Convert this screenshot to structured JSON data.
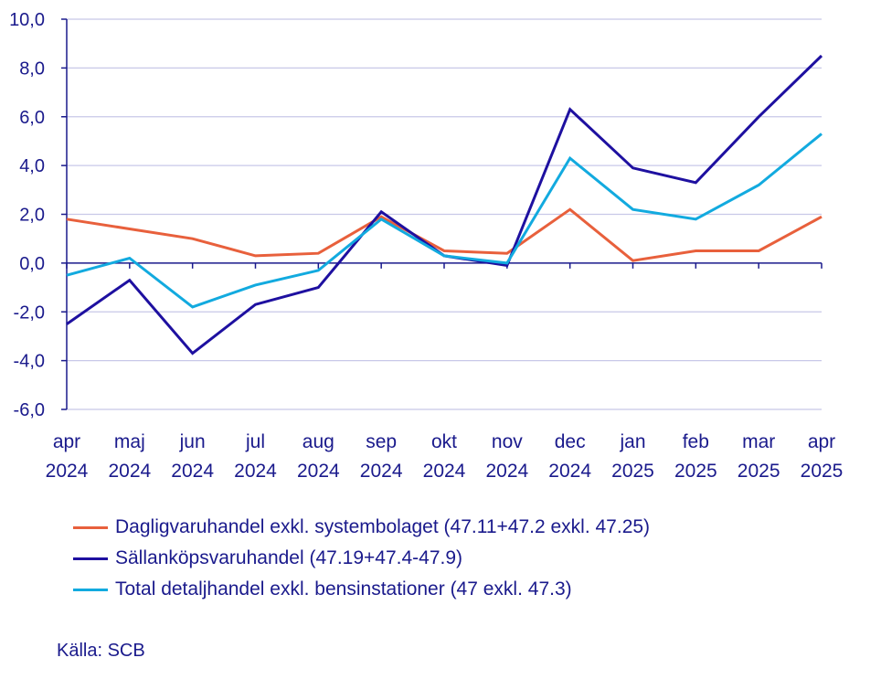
{
  "chart_data": {
    "type": "line",
    "x_top": [
      "apr",
      "maj",
      "jun",
      "jul",
      "aug",
      "sep",
      "okt",
      "nov",
      "dec",
      "jan",
      "feb",
      "mar",
      "apr"
    ],
    "x_bottom": [
      "2024",
      "2024",
      "2024",
      "2024",
      "2024",
      "2024",
      "2024",
      "2024",
      "2024",
      "2025",
      "2025",
      "2025",
      "2025"
    ],
    "ylim": [
      -6,
      10
    ],
    "yticks": [
      -6,
      -4,
      -2,
      0,
      2,
      4,
      6,
      8,
      10
    ],
    "ytick_labels": [
      "-6,0",
      "-4,0",
      "-2,0",
      "0,0",
      "2,0",
      "4,0",
      "6,0",
      "8,0",
      "10,0"
    ],
    "grid": true,
    "legend_position": "bottom",
    "series": [
      {
        "name": "Dagligvaruhandel exkl. systembolaget (47.11+47.2 exkl. 47.25)",
        "color": "#e8603c",
        "values": [
          1.8,
          1.4,
          1.0,
          0.3,
          0.4,
          1.9,
          0.5,
          0.4,
          2.2,
          0.1,
          0.5,
          0.5,
          1.9
        ]
      },
      {
        "name": "Sällanköpsvaruhandel (47.19+47.4-47.9)",
        "color": "#1e10a0",
        "values": [
          -2.5,
          -0.7,
          -3.7,
          -1.7,
          -1.0,
          2.1,
          0.3,
          -0.1,
          6.3,
          3.9,
          3.3,
          6.0,
          8.5
        ]
      },
      {
        "name": "Total detaljhandel exkl. bensinstationer (47 exkl. 47.3)",
        "color": "#12aadf",
        "values": [
          -0.5,
          0.2,
          -1.8,
          -0.9,
          -0.3,
          1.8,
          0.3,
          0.0,
          4.3,
          2.2,
          1.8,
          3.2,
          5.3
        ]
      }
    ]
  },
  "source": "Källa: SCB"
}
